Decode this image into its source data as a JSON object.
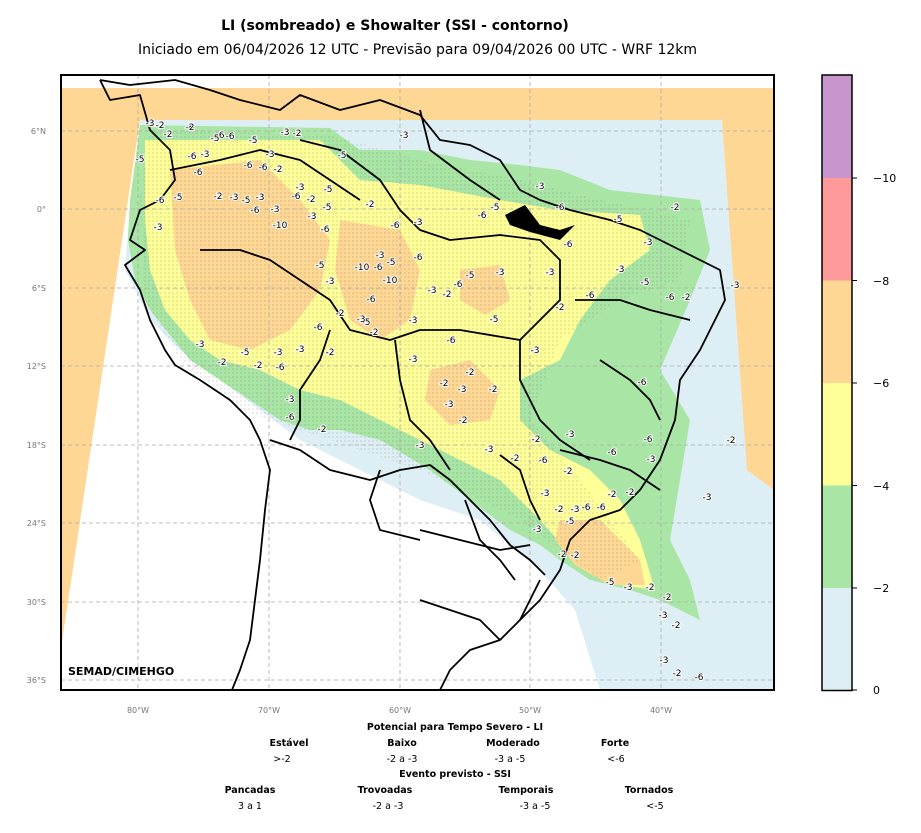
{
  "title": "LI (sombreado) e Showalter (SSI - contorno)",
  "subtitle": "Iniciado em 06/04/2026 12 UTC - Previsão para 09/04/2026 00 UTC - WRF 12km",
  "credit": "SEMAD/CIMEHGO",
  "lat_labels": [
    "6°N",
    "0°",
    "6°S",
    "12°S",
    "18°S",
    "24°S",
    "30°S",
    "36°S"
  ],
  "lon_labels": [
    "80°W",
    "70°W",
    "60°W",
    "50°W",
    "40°W"
  ],
  "colorbar": {
    "ticks": [
      "0",
      "−2",
      "−4",
      "−6",
      "−8",
      "−10"
    ],
    "colors": [
      "#ddeff5",
      "#a9e6a5",
      "#ffff99",
      "#ffd794",
      "#ff9a9a",
      "#c896cc"
    ]
  },
  "legend": {
    "li_title": "Potencial para Tempo Severo - LI",
    "li_categories": [
      {
        "name": "Estável",
        "range": ">-2"
      },
      {
        "name": "Baixo",
        "range": "-2 a -3"
      },
      {
        "name": "Moderado",
        "range": "-3 a -5"
      },
      {
        "name": "Forte",
        "range": "<-6"
      }
    ],
    "ssi_title": "Evento previsto - SSI",
    "ssi_categories": [
      {
        "name": "Pancadas",
        "range": "3 a 1"
      },
      {
        "name": "Trovoadas",
        "range": "-2 a -3"
      },
      {
        "name": "Temporais",
        "range": "-3 a -5"
      },
      {
        "name": "Tornados",
        "range": "<-5"
      }
    ]
  },
  "contour_labels": [
    "-2",
    "-2",
    "-6",
    "-6",
    "-2",
    "-3",
    "-2",
    "-3",
    "-5",
    "-6",
    "-5",
    "-3",
    "-6",
    "-6",
    "-2",
    "-5",
    "-6",
    "-3",
    "-5",
    "-6",
    "-3",
    "-5",
    "-6",
    "-2",
    "-5",
    "-3",
    "-5",
    "-2",
    "-3",
    "-6",
    "-3",
    "-3",
    "-6",
    "-5",
    "-3",
    "-10",
    "-6",
    "-2",
    "-6",
    "-3",
    "-6",
    "-5",
    "-3",
    "-6",
    "-5",
    "-2",
    "-3",
    "-6",
    "-3",
    "-5",
    "-6",
    "-3",
    "-2",
    "-6",
    "-5",
    "-6",
    "-10",
    "-10",
    "-3",
    "-5",
    "-3",
    "-6",
    "-5",
    "-2",
    "-3",
    "-2",
    "-6",
    "-3",
    "-6",
    "-5",
    "-3",
    "-2",
    "-3",
    "-6",
    "-3",
    "-5",
    "-6",
    "-2",
    "-3",
    "-2",
    "-3",
    "-3",
    "-2",
    "-6",
    "-3",
    "-2",
    "-3",
    "-2",
    "-2",
    "-3",
    "-3",
    "-2",
    "-3",
    "-2",
    "-6",
    "-2",
    "-2",
    "-3",
    "-6",
    "-6",
    "-3",
    "-2",
    "-2",
    "-3",
    "-2",
    "-3",
    "-2",
    "-3",
    "-5",
    "-6",
    "-6",
    "-3",
    "-2",
    "-2",
    "-5",
    "-3",
    "-2",
    "-2",
    "-3",
    "-2",
    "-6",
    "-3",
    "-2",
    "-6",
    "-5",
    "-2",
    "-6",
    "-3",
    "-3",
    "-2",
    "-3",
    "-2",
    "-2"
  ]
}
